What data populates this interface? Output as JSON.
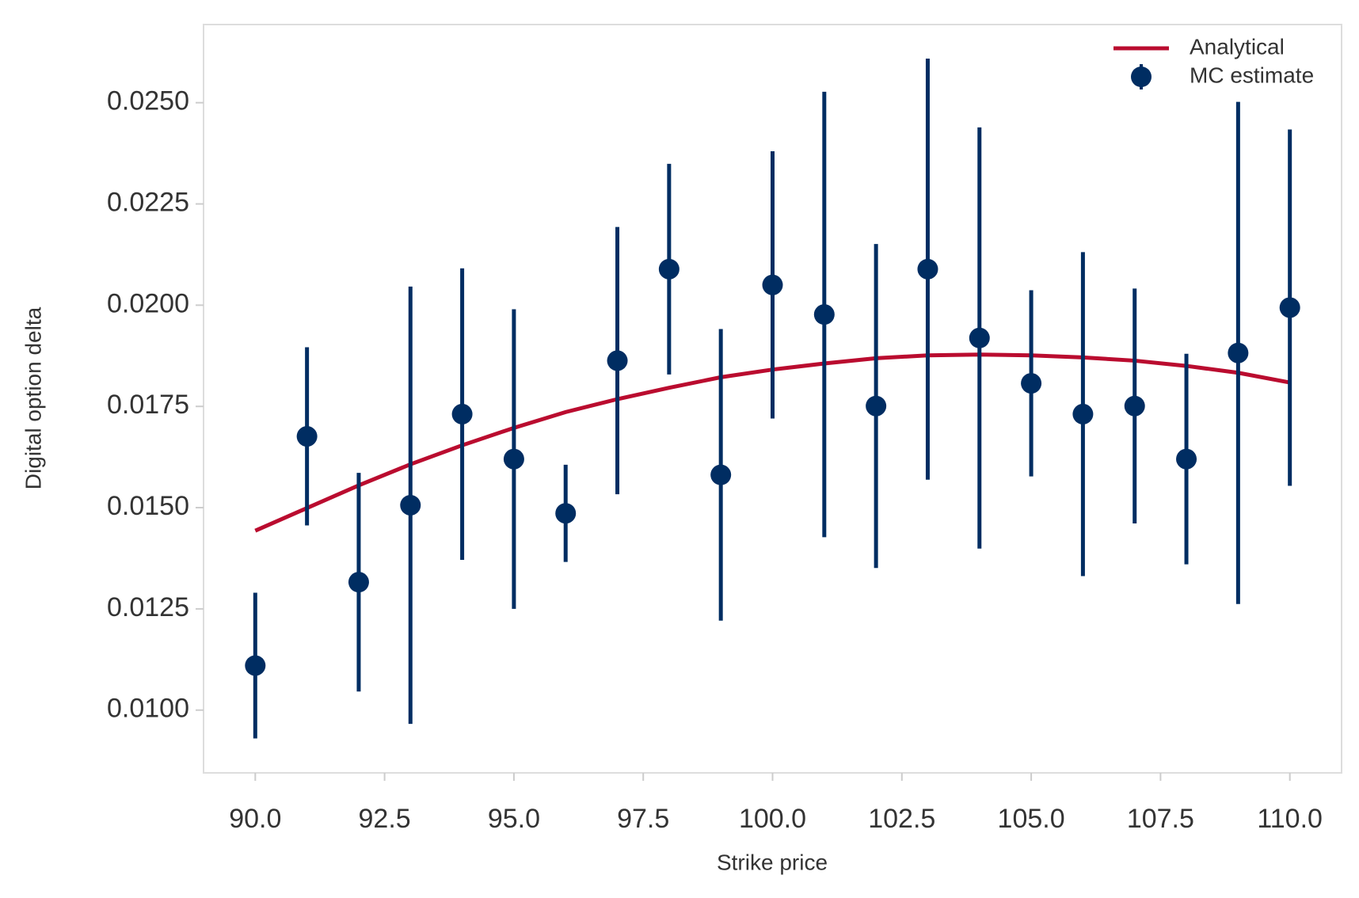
{
  "chart_data": {
    "type": "errorbar",
    "x_label": "Strike price",
    "y_label": "Digital option delta",
    "xlim": [
      89.0,
      111.0
    ],
    "ylim": [
      0.00845,
      0.02693
    ],
    "xticks": [
      {
        "value": 90,
        "label": "90.0"
      },
      {
        "value": 92.5,
        "label": "92.5"
      },
      {
        "value": 95,
        "label": "95.0"
      },
      {
        "value": 97.5,
        "label": "97.5"
      },
      {
        "value": 100,
        "label": "100.0"
      },
      {
        "value": 102.5,
        "label": "102.5"
      },
      {
        "value": 105,
        "label": "105.0"
      },
      {
        "value": 107.5,
        "label": "107.5"
      },
      {
        "value": 110,
        "label": "110.0"
      }
    ],
    "yticks": [
      {
        "value": 0.01,
        "label": "0.0100"
      },
      {
        "value": 0.0125,
        "label": "0.0125"
      },
      {
        "value": 0.015,
        "label": "0.0150"
      },
      {
        "value": 0.0175,
        "label": "0.0175"
      },
      {
        "value": 0.02,
        "label": "0.0200"
      },
      {
        "value": 0.0225,
        "label": "0.0225"
      },
      {
        "value": 0.025,
        "label": "0.0250"
      }
    ],
    "legend": "upper right",
    "x": [
      90,
      91,
      92,
      93,
      94,
      95,
      96,
      97,
      98,
      99,
      100,
      101,
      102,
      103,
      104,
      105,
      106,
      107,
      108,
      109,
      110
    ],
    "series": [
      {
        "name": "Analytical",
        "color": "#ba0c2f",
        "mark": "line",
        "values": [
          0.01443,
          0.01499,
          0.01555,
          0.01607,
          0.01654,
          0.01697,
          0.01736,
          0.01768,
          0.01796,
          0.01822,
          0.01841,
          0.01856,
          0.01869,
          0.01876,
          0.01878,
          0.01876,
          0.01871,
          0.01863,
          0.0185,
          0.01833,
          0.01809
        ]
      },
      {
        "name": "MC estimate",
        "color": "#002d62",
        "mark": "errorbar",
        "values": [
          0.0111,
          0.01676,
          0.01316,
          0.01506,
          0.01731,
          0.0162,
          0.01486,
          0.01863,
          0.02089,
          0.01581,
          0.0205,
          0.01977,
          0.01751,
          0.02089,
          0.01919,
          0.01807,
          0.01731,
          0.01751,
          0.0162,
          0.01882,
          0.01994
        ],
        "errors": [
          0.0018,
          0.0022,
          0.0027,
          0.0054,
          0.0036,
          0.0037,
          0.0012,
          0.0033,
          0.0026,
          0.0036,
          0.0033,
          0.0055,
          0.004,
          0.0052,
          0.0052,
          0.0023,
          0.004,
          0.0029,
          0.0026,
          0.0062,
          0.0044
        ]
      }
    ]
  }
}
